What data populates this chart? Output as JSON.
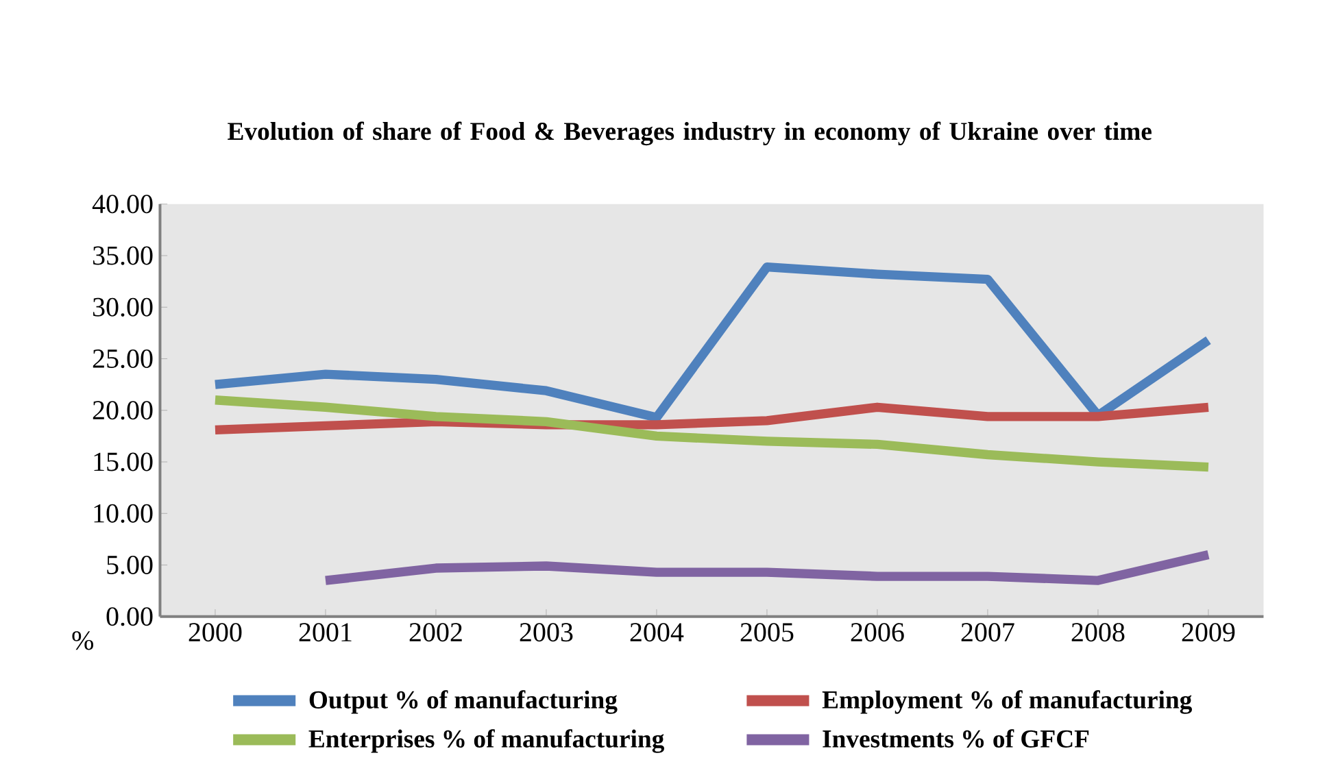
{
  "chart_data": {
    "type": "line",
    "title": "Evolution of share of Food & Beverages  industry in economy of Ukraine over time",
    "ylabel": "%",
    "categories": [
      "2000",
      "2001",
      "2002",
      "2003",
      "2004",
      "2005",
      "2006",
      "2007",
      "2008",
      "2009"
    ],
    "series": [
      {
        "name": "Output % of manufacturing",
        "color": "#4f81bd",
        "values": [
          22.5,
          23.5,
          23.0,
          21.9,
          19.3,
          33.9,
          33.2,
          32.7,
          19.5,
          26.8
        ]
      },
      {
        "name": "Employment % of manufacturing",
        "color": "#c0504d",
        "values": [
          18.1,
          18.5,
          18.9,
          18.6,
          18.6,
          19.0,
          20.3,
          19.4,
          19.4,
          20.3
        ]
      },
      {
        "name": "Enterprises % of manufacturing",
        "color": "#9bbb59",
        "values": [
          21.0,
          20.3,
          19.4,
          18.9,
          17.5,
          17.0,
          16.7,
          15.7,
          15.0,
          14.5
        ]
      },
      {
        "name": "Investments % of GFCF",
        "color": "#8064a2",
        "values": [
          null,
          3.5,
          4.7,
          4.9,
          4.3,
          4.3,
          3.9,
          3.9,
          3.5,
          6.0
        ]
      }
    ],
    "ylim": [
      0,
      40
    ],
    "yticks": [
      {
        "value": 0,
        "label": "0.00"
      },
      {
        "value": 5,
        "label": "5.00"
      },
      {
        "value": 10,
        "label": "10.00"
      },
      {
        "value": 15,
        "label": "15.00"
      },
      {
        "value": 20,
        "label": "20.00"
      },
      {
        "value": 25,
        "label": "25.00"
      },
      {
        "value": 30,
        "label": "30.00"
      },
      {
        "value": 35,
        "label": "35.00"
      },
      {
        "value": 40,
        "label": "40.00"
      }
    ],
    "grid": false,
    "legend": "bottom",
    "marker": "none",
    "line_style": "solid"
  }
}
